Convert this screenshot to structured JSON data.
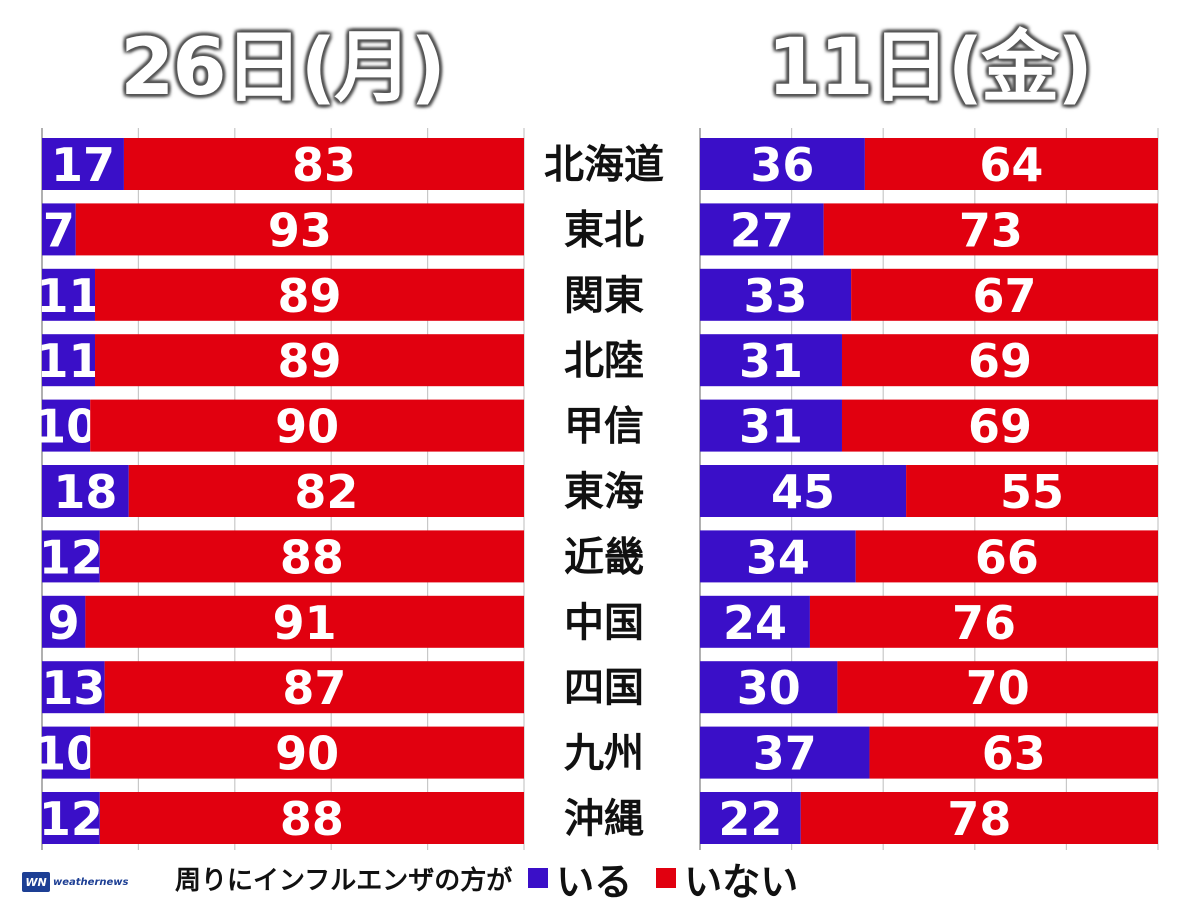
{
  "chart_data": [
    {
      "type": "bar",
      "stacked": true,
      "orientation": "horizontal",
      "title": "26日(月)",
      "categories": [
        "北海道",
        "東北",
        "関東",
        "北陸",
        "甲信",
        "東海",
        "近畿",
        "中国",
        "四国",
        "九州",
        "沖縄"
      ],
      "series": [
        {
          "name": "いる",
          "color": "#3a0fc8",
          "values": [
            17,
            7,
            11,
            11,
            10,
            18,
            12,
            9,
            13,
            10,
            12
          ]
        },
        {
          "name": "いない",
          "color": "#e1000f",
          "values": [
            83,
            93,
            89,
            89,
            90,
            82,
            88,
            91,
            87,
            90,
            88
          ]
        }
      ],
      "xlim": [
        0,
        100
      ],
      "grid": true
    },
    {
      "type": "bar",
      "stacked": true,
      "orientation": "horizontal",
      "title": "11日(金)",
      "categories": [
        "北海道",
        "東北",
        "関東",
        "北陸",
        "甲信",
        "東海",
        "近畿",
        "中国",
        "四国",
        "九州",
        "沖縄"
      ],
      "series": [
        {
          "name": "いる",
          "color": "#3a0fc8",
          "values": [
            36,
            27,
            33,
            31,
            31,
            45,
            34,
            24,
            30,
            37,
            22
          ]
        },
        {
          "name": "いない",
          "color": "#e1000f",
          "values": [
            64,
            73,
            67,
            69,
            69,
            55,
            66,
            76,
            70,
            63,
            78
          ]
        }
      ],
      "xlim": [
        0,
        100
      ],
      "grid": true
    }
  ],
  "legend": {
    "text": "周りにインフルエンザの方が",
    "items": [
      {
        "label": "いる",
        "color": "#3a0fc8"
      },
      {
        "label": "いない",
        "color": "#e1000f"
      }
    ]
  },
  "logo": {
    "mark": "WN",
    "text": "weathernews"
  }
}
